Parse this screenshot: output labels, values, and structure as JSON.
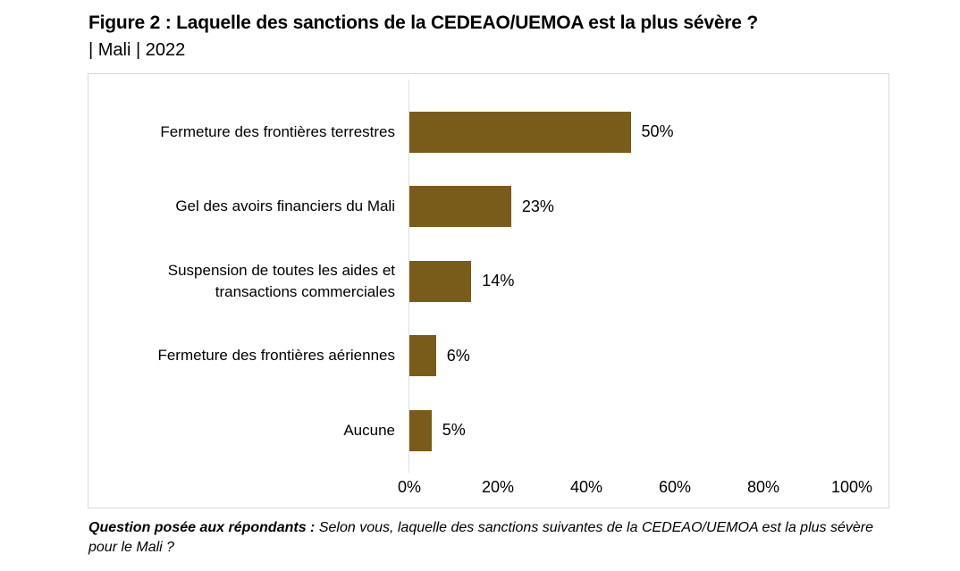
{
  "title": "Figure 2 : Laquelle des sanctions de la CEDEAO/UEMOA est la plus sévère ?",
  "subtitle": "| Mali | 2022",
  "footer": {
    "label": "Question posée aux répondants :",
    "text": " Selon vous, laquelle des sanctions suivantes de la CEDEAO/UEMOA est la plus sévère pour le Mali ?"
  },
  "colors": {
    "bar": "#7A5C1A",
    "axis": "#DCDCDC",
    "border": "#D9D9D9",
    "text": "#000000"
  },
  "chart_data": {
    "type": "bar",
    "orientation": "horizontal",
    "title": "Figure 2 : Laquelle des sanctions de la CEDEAO/UEMOA est la plus sévère ? | Mali | 2022",
    "categories": [
      "Fermeture des frontières terrestres",
      "Gel des avoirs financiers du Mali",
      "Suspension de toutes les aides et transactions commerciales",
      "Fermeture des frontières aériennes",
      "Aucune"
    ],
    "values": [
      50,
      23,
      14,
      6,
      5
    ],
    "value_labels": [
      "50%",
      "23%",
      "14%",
      "6%",
      "5%"
    ],
    "x_ticks": [
      "0%",
      "20%",
      "40%",
      "60%",
      "80%",
      "100%"
    ],
    "xlim": [
      0,
      100
    ],
    "xlabel": "",
    "ylabel": "",
    "grid": false,
    "legend": false
  }
}
